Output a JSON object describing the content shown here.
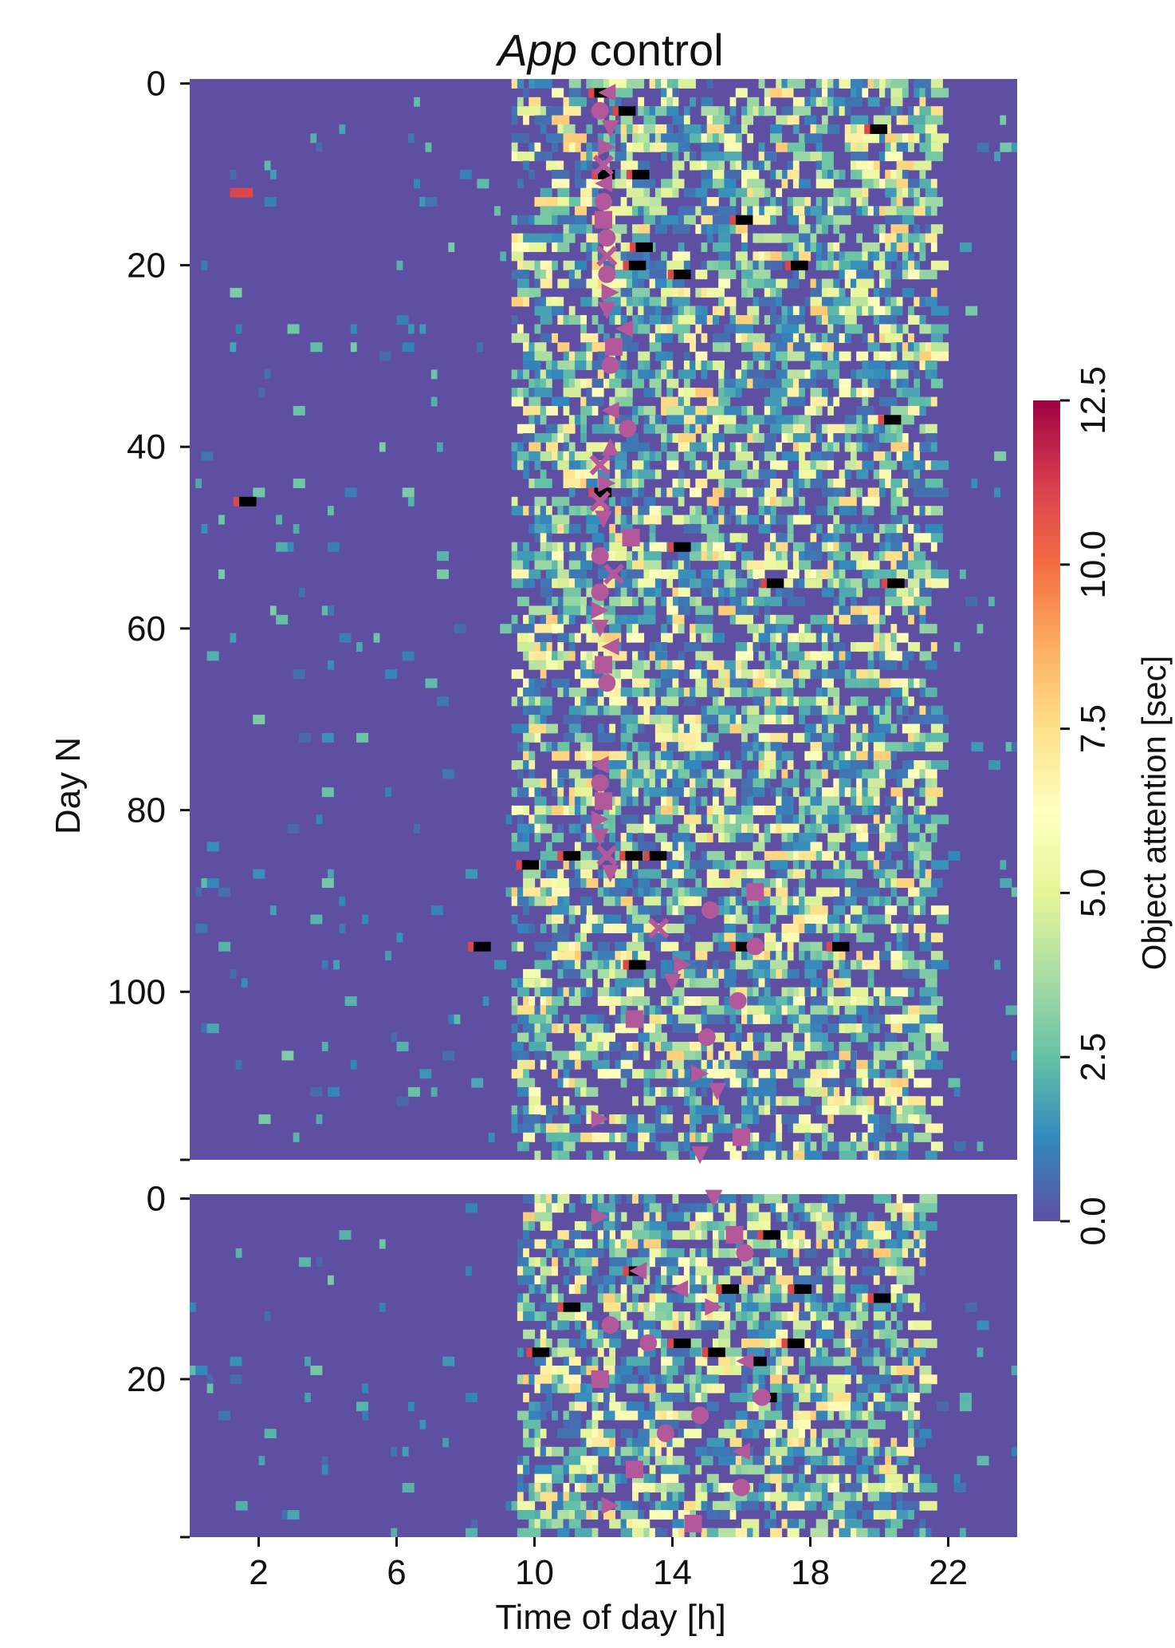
{
  "chart_data": {
    "type": "heatmap",
    "title": {
      "italic": "App",
      "rest": " control"
    },
    "xlabel": "Time of day [h]",
    "ylabel": "Day N",
    "x_range": [
      0,
      24
    ],
    "x_ticks": [
      2,
      6,
      10,
      14,
      18,
      22
    ],
    "x_tick_labels": [
      "2",
      "6",
      "10",
      "14",
      "18",
      "22"
    ],
    "colorbar": {
      "label": "Object attention [sec]",
      "range": [
        0,
        12.5
      ],
      "ticks": [
        0.0,
        2.5,
        5.0,
        7.5,
        10.0,
        12.5
      ],
      "tick_labels": [
        "0.0",
        "2.5",
        "5.0",
        "7.5",
        "10.0",
        "12.5"
      ],
      "colormap": "Spectral_r",
      "over_color": "#000000"
    },
    "panels": [
      {
        "name": "top",
        "y_range": [
          0,
          119
        ],
        "y_ticks": [
          0,
          20,
          40,
          60,
          80,
          100
        ],
        "y_tick_labels": [
          "0",
          "20",
          "40",
          "60",
          "80",
          "100"
        ],
        "active_hours": [
          9.2,
          21.5
        ],
        "high_values": [
          {
            "day": 1,
            "hour": 11.9,
            "value": 13
          },
          {
            "day": 3,
            "hour": 12.6,
            "value": 13
          },
          {
            "day": 5,
            "hour": 19.9,
            "value": 13
          },
          {
            "day": 10,
            "hour": 12.0,
            "value": 13
          },
          {
            "day": 10,
            "hour": 13.0,
            "value": 13
          },
          {
            "day": 12,
            "hour": 1.5,
            "value": 11
          },
          {
            "day": 15,
            "hour": 16.0,
            "value": 13
          },
          {
            "day": 18,
            "hour": 13.1,
            "value": 13
          },
          {
            "day": 20,
            "hour": 12.9,
            "value": 13
          },
          {
            "day": 20,
            "hour": 17.6,
            "value": 13
          },
          {
            "day": 21,
            "hour": 14.2,
            "value": 13
          },
          {
            "day": 37,
            "hour": 20.3,
            "value": 13
          },
          {
            "day": 45,
            "hour": 11.9,
            "value": 13
          },
          {
            "day": 46,
            "hour": 1.6,
            "value": 13
          },
          {
            "day": 51,
            "hour": 14.2,
            "value": 13
          },
          {
            "day": 55,
            "hour": 16.9,
            "value": 13
          },
          {
            "day": 55,
            "hour": 20.4,
            "value": 13
          },
          {
            "day": 85,
            "hour": 11.0,
            "value": 13
          },
          {
            "day": 85,
            "hour": 13.5,
            "value": 13
          },
          {
            "day": 85,
            "hour": 12.8,
            "value": 13
          },
          {
            "day": 86,
            "hour": 9.8,
            "value": 13
          },
          {
            "day": 95,
            "hour": 8.4,
            "value": 13
          },
          {
            "day": 95,
            "hour": 16.0,
            "value": 13
          },
          {
            "day": 95,
            "hour": 18.8,
            "value": 13
          },
          {
            "day": 97,
            "hour": 12.9,
            "value": 13
          }
        ],
        "markers": [
          {
            "day": 1,
            "hour": 12.1,
            "shape": "tri-left"
          },
          {
            "day": 3,
            "hour": 11.9,
            "shape": "circle"
          },
          {
            "day": 5,
            "hour": 12.2,
            "shape": "tri-down"
          },
          {
            "day": 7,
            "hour": 12.1,
            "shape": "tri-right"
          },
          {
            "day": 9,
            "hour": 12.0,
            "shape": "x"
          },
          {
            "day": 11,
            "hour": 12.0,
            "shape": "tri-left"
          },
          {
            "day": 13,
            "hour": 12.0,
            "shape": "circle"
          },
          {
            "day": 15,
            "hour": 12.0,
            "shape": "square"
          },
          {
            "day": 17,
            "hour": 12.1,
            "shape": "circle"
          },
          {
            "day": 19,
            "hour": 12.1,
            "shape": "x"
          },
          {
            "day": 21,
            "hour": 12.1,
            "shape": "circle"
          },
          {
            "day": 23,
            "hour": 12.2,
            "shape": "tri-right"
          },
          {
            "day": 25,
            "hour": 12.1,
            "shape": "tri-down"
          },
          {
            "day": 27,
            "hour": 12.6,
            "shape": "tri-left"
          },
          {
            "day": 29,
            "hour": 12.3,
            "shape": "square"
          },
          {
            "day": 31,
            "hour": 12.2,
            "shape": "circle"
          },
          {
            "day": 36,
            "hour": 12.2,
            "shape": "tri-left"
          },
          {
            "day": 38,
            "hour": 12.7,
            "shape": "circle"
          },
          {
            "day": 40,
            "hour": 12.2,
            "shape": "tri-up"
          },
          {
            "day": 42,
            "hour": 11.9,
            "shape": "x"
          },
          {
            "day": 44,
            "hour": 12.1,
            "shape": "tri-right"
          },
          {
            "day": 46,
            "hour": 11.9,
            "shape": "x"
          },
          {
            "day": 48,
            "hour": 12.0,
            "shape": "tri-down"
          },
          {
            "day": 50,
            "hour": 12.8,
            "shape": "square"
          },
          {
            "day": 52,
            "hour": 11.9,
            "shape": "circle"
          },
          {
            "day": 54,
            "hour": 12.3,
            "shape": "x"
          },
          {
            "day": 56,
            "hour": 11.9,
            "shape": "circle"
          },
          {
            "day": 58,
            "hour": 11.9,
            "shape": "tri-right"
          },
          {
            "day": 60,
            "hour": 11.9,
            "shape": "tri-down"
          },
          {
            "day": 62,
            "hour": 12.2,
            "shape": "tri-left"
          },
          {
            "day": 64,
            "hour": 12.0,
            "shape": "square"
          },
          {
            "day": 66,
            "hour": 12.1,
            "shape": "circle"
          },
          {
            "day": 75,
            "hour": 11.9,
            "shape": "tri-left"
          },
          {
            "day": 77,
            "hour": 11.9,
            "shape": "circle"
          },
          {
            "day": 79,
            "hour": 12.0,
            "shape": "square"
          },
          {
            "day": 81,
            "hour": 11.9,
            "shape": "tri-right"
          },
          {
            "day": 83,
            "hour": 11.9,
            "shape": "tri-down"
          },
          {
            "day": 85,
            "hour": 12.1,
            "shape": "x"
          },
          {
            "day": 87,
            "hour": 12.2,
            "shape": "tri-down"
          },
          {
            "day": 89,
            "hour": 16.4,
            "shape": "square"
          },
          {
            "day": 91,
            "hour": 15.1,
            "shape": "circle"
          },
          {
            "day": 93,
            "hour": 13.6,
            "shape": "x"
          },
          {
            "day": 95,
            "hour": 16.4,
            "shape": "circle"
          },
          {
            "day": 97,
            "hour": 14.3,
            "shape": "tri-right"
          },
          {
            "day": 99,
            "hour": 14.0,
            "shape": "tri-down"
          },
          {
            "day": 101,
            "hour": 15.9,
            "shape": "circle"
          },
          {
            "day": 103,
            "hour": 12.9,
            "shape": "square"
          },
          {
            "day": 105,
            "hour": 15.0,
            "shape": "circle"
          },
          {
            "day": 109,
            "hour": 14.8,
            "shape": "tri-right"
          },
          {
            "day": 111,
            "hour": 15.3,
            "shape": "tri-down"
          },
          {
            "day": 114,
            "hour": 11.9,
            "shape": "tri-right"
          },
          {
            "day": 116,
            "hour": 16.0,
            "shape": "square"
          },
          {
            "day": 118,
            "hour": 14.8,
            "shape": "tri-down"
          }
        ]
      },
      {
        "name": "bottom",
        "y_range": [
          0,
          38
        ],
        "y_ticks": [
          0,
          20
        ],
        "y_tick_labels": [
          "0",
          "20"
        ],
        "active_hours": [
          9.5,
          21.2
        ],
        "high_values": [
          {
            "day": 4,
            "hour": 16.8,
            "value": 13
          },
          {
            "day": 8,
            "hour": 12.9,
            "value": 13
          },
          {
            "day": 10,
            "hour": 15.6,
            "value": 13
          },
          {
            "day": 10,
            "hour": 17.7,
            "value": 13
          },
          {
            "day": 11,
            "hour": 20.0,
            "value": 13
          },
          {
            "day": 12,
            "hour": 11.0,
            "value": 13
          },
          {
            "day": 16,
            "hour": 14.2,
            "value": 13
          },
          {
            "day": 16,
            "hour": 17.5,
            "value": 13
          },
          {
            "day": 17,
            "hour": 10.1,
            "value": 13
          },
          {
            "day": 17,
            "hour": 15.2,
            "value": 13
          },
          {
            "day": 18,
            "hour": 16.4,
            "value": 13
          },
          {
            "day": 22,
            "hour": 16.7,
            "value": 13
          }
        ],
        "markers": [
          {
            "day": 0,
            "hour": 15.2,
            "shape": "tri-down"
          },
          {
            "day": 2,
            "hour": 11.9,
            "shape": "tri-right"
          },
          {
            "day": 4,
            "hour": 15.8,
            "shape": "square"
          },
          {
            "day": 6,
            "hour": 16.1,
            "shape": "circle"
          },
          {
            "day": 8,
            "hour": 13.0,
            "shape": "tri-left"
          },
          {
            "day": 10,
            "hour": 14.2,
            "shape": "tri-left"
          },
          {
            "day": 12,
            "hour": 15.2,
            "shape": "tri-right"
          },
          {
            "day": 14,
            "hour": 12.2,
            "shape": "circle"
          },
          {
            "day": 16,
            "hour": 13.3,
            "shape": "circle"
          },
          {
            "day": 18,
            "hour": 16.1,
            "shape": "tri-left"
          },
          {
            "day": 20,
            "hour": 11.9,
            "shape": "square"
          },
          {
            "day": 22,
            "hour": 16.6,
            "shape": "circle"
          },
          {
            "day": 24,
            "hour": 14.8,
            "shape": "circle"
          },
          {
            "day": 26,
            "hour": 13.8,
            "shape": "circle"
          },
          {
            "day": 28,
            "hour": 16.0,
            "shape": "tri-left"
          },
          {
            "day": 30,
            "hour": 12.9,
            "shape": "square"
          },
          {
            "day": 32,
            "hour": 16.0,
            "shape": "circle"
          },
          {
            "day": 34,
            "hour": 12.2,
            "shape": "tri-right"
          },
          {
            "day": 36,
            "hour": 14.6,
            "shape": "square"
          }
        ]
      }
    ],
    "marker_color": "#b4589c",
    "background_color": "#5e4fa2"
  }
}
